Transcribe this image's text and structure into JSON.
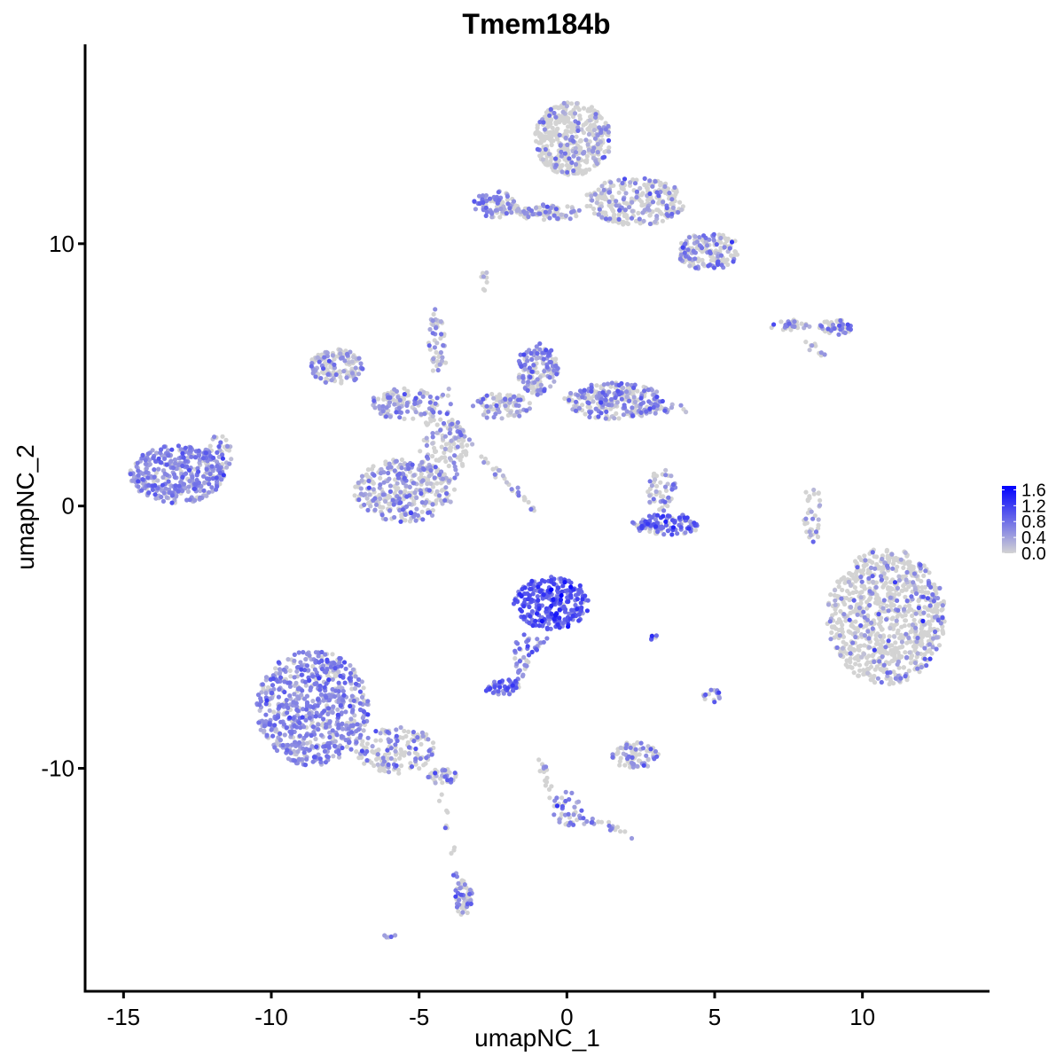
{
  "chart_data": {
    "type": "scatter",
    "title": "Tmem184b",
    "xlabel": "umapNC_1",
    "ylabel": "umapNC_2",
    "xlim": [
      -16.3,
      14.3
    ],
    "ylim": [
      -18.5,
      17.6
    ],
    "x_ticks": [
      -15,
      -10,
      -5,
      0,
      5,
      10
    ],
    "y_ticks": [
      -10,
      0,
      10
    ],
    "x_tick_labels": [
      "-15",
      "-10",
      "-5",
      "0",
      "5",
      "10"
    ],
    "y_tick_labels": [
      "-10",
      "0",
      "10"
    ],
    "grid": false,
    "legend": {
      "placement": "right",
      "type": "colorbar",
      "ticks": [
        1.6,
        1.2,
        0.8,
        0.4,
        0.0
      ],
      "tick_labels": [
        "1.6",
        "1.2",
        "0.8",
        "0.4",
        "0.0"
      ],
      "min_value": 0.0,
      "max_value": 1.7
    },
    "colors": {
      "low": "#d3d3d3",
      "high": "#0000ff"
    },
    "clusters": [
      {
        "cx": -13.2,
        "cy": 1.2,
        "rx": 1.6,
        "ry": 1.1,
        "n": 380,
        "expr_frac": 0.85,
        "expr_mean": 0.55
      },
      {
        "cx": -11.8,
        "cy": 2.0,
        "rx": 0.5,
        "ry": 0.7,
        "n": 40,
        "expr_frac": 0.6,
        "expr_mean": 0.45
      },
      {
        "cx": 0.2,
        "cy": 14.0,
        "rx": 1.3,
        "ry": 1.4,
        "n": 420,
        "expr_frac": 0.2,
        "expr_mean": 0.5
      },
      {
        "cx": 2.3,
        "cy": 11.6,
        "rx": 1.7,
        "ry": 0.9,
        "n": 260,
        "expr_frac": 0.3,
        "expr_mean": 0.5
      },
      {
        "cx": 4.8,
        "cy": 9.7,
        "rx": 1.1,
        "ry": 0.7,
        "n": 170,
        "expr_frac": 0.4,
        "expr_mean": 0.55
      },
      {
        "cx": -2.4,
        "cy": 11.5,
        "rx": 0.8,
        "ry": 0.5,
        "n": 80,
        "expr_frac": 0.55,
        "expr_mean": 0.55
      },
      {
        "cx": -0.6,
        "cy": 11.2,
        "rx": 1.2,
        "ry": 0.3,
        "n": 60,
        "expr_frac": 0.4,
        "expr_mean": 0.5
      },
      {
        "cx": 9.1,
        "cy": 6.8,
        "rx": 0.6,
        "ry": 0.3,
        "n": 50,
        "expr_frac": 0.5,
        "expr_mean": 0.75
      },
      {
        "cx": 7.5,
        "cy": 6.9,
        "rx": 0.8,
        "ry": 0.2,
        "n": 35,
        "expr_frac": 0.4,
        "expr_mean": 0.6
      },
      {
        "cx": -7.8,
        "cy": 5.3,
        "rx": 0.9,
        "ry": 0.7,
        "n": 130,
        "expr_frac": 0.6,
        "expr_mean": 0.55
      },
      {
        "cx": -5.5,
        "cy": 3.9,
        "rx": 1.2,
        "ry": 0.6,
        "n": 120,
        "expr_frac": 0.45,
        "expr_mean": 0.5
      },
      {
        "cx": -4.2,
        "cy": 2.2,
        "rx": 0.8,
        "ry": 1.4,
        "n": 110,
        "expr_frac": 0.35,
        "expr_mean": 0.5
      },
      {
        "cx": -5.5,
        "cy": 0.6,
        "rx": 1.7,
        "ry": 1.2,
        "n": 330,
        "expr_frac": 0.5,
        "expr_mean": 0.5
      },
      {
        "cx": -1.0,
        "cy": 5.2,
        "rx": 0.7,
        "ry": 1.0,
        "n": 150,
        "expr_frac": 0.65,
        "expr_mean": 0.6
      },
      {
        "cx": 1.6,
        "cy": 4.0,
        "rx": 1.7,
        "ry": 0.7,
        "n": 260,
        "expr_frac": 0.55,
        "expr_mean": 0.55
      },
      {
        "cx": -2.2,
        "cy": 3.8,
        "rx": 1.0,
        "ry": 0.5,
        "n": 90,
        "expr_frac": 0.45,
        "expr_mean": 0.5
      },
      {
        "cx": -4.4,
        "cy": 6.2,
        "rx": 0.3,
        "ry": 1.2,
        "n": 35,
        "expr_frac": 0.5,
        "expr_mean": 0.5
      },
      {
        "cx": 3.4,
        "cy": -0.7,
        "rx": 1.2,
        "ry": 0.4,
        "n": 110,
        "expr_frac": 0.7,
        "expr_mean": 0.8
      },
      {
        "cx": 3.2,
        "cy": 0.6,
        "rx": 0.5,
        "ry": 0.8,
        "n": 50,
        "expr_frac": 0.5,
        "expr_mean": 0.5
      },
      {
        "cx": -0.5,
        "cy": -3.7,
        "rx": 1.3,
        "ry": 1.0,
        "n": 260,
        "expr_frac": 0.95,
        "expr_mean": 0.95
      },
      {
        "cx": -2.2,
        "cy": -6.9,
        "rx": 0.6,
        "ry": 0.3,
        "n": 45,
        "expr_frac": 0.85,
        "expr_mean": 0.85
      },
      {
        "cx": -1.5,
        "cy": -5.6,
        "rx": 0.3,
        "ry": 0.8,
        "n": 25,
        "expr_frac": 0.8,
        "expr_mean": 0.7
      },
      {
        "cx": 10.8,
        "cy": -4.2,
        "rx": 2.0,
        "ry": 2.6,
        "n": 850,
        "expr_frac": 0.22,
        "expr_mean": 0.55
      },
      {
        "cx": -8.6,
        "cy": -7.7,
        "rx": 1.9,
        "ry": 2.2,
        "n": 680,
        "expr_frac": 0.82,
        "expr_mean": 0.55
      },
      {
        "cx": -5.8,
        "cy": -9.3,
        "rx": 1.4,
        "ry": 0.9,
        "n": 150,
        "expr_frac": 0.5,
        "expr_mean": 0.55
      },
      {
        "cx": -4.2,
        "cy": -10.3,
        "rx": 0.5,
        "ry": 0.3,
        "n": 40,
        "expr_frac": 0.6,
        "expr_mean": 0.6
      },
      {
        "cx": 2.3,
        "cy": -9.5,
        "rx": 0.8,
        "ry": 0.5,
        "n": 80,
        "expr_frac": 0.45,
        "expr_mean": 0.5
      },
      {
        "cx": 0.0,
        "cy": -11.6,
        "rx": 0.5,
        "ry": 0.7,
        "n": 35,
        "expr_frac": 0.6,
        "expr_mean": 0.6
      },
      {
        "cx": -3.5,
        "cy": -14.9,
        "rx": 0.3,
        "ry": 0.7,
        "n": 55,
        "expr_frac": 0.55,
        "expr_mean": 0.55
      },
      {
        "cx": 8.3,
        "cy": -0.3,
        "rx": 0.3,
        "ry": 1.2,
        "n": 35,
        "expr_frac": 0.4,
        "expr_mean": 0.5
      },
      {
        "cx": 4.9,
        "cy": -7.2,
        "rx": 0.3,
        "ry": 0.3,
        "n": 15,
        "expr_frac": 0.6,
        "expr_mean": 0.6
      },
      {
        "cx": 2.9,
        "cy": -5.0,
        "rx": 0.2,
        "ry": 0.1,
        "n": 6,
        "expr_frac": 0.6,
        "expr_mean": 0.9
      },
      {
        "cx": -2.8,
        "cy": 8.6,
        "rx": 0.2,
        "ry": 0.4,
        "n": 8,
        "expr_frac": 0.5,
        "expr_mean": 0.5
      },
      {
        "cx": -6.0,
        "cy": -16.4,
        "rx": 0.2,
        "ry": 0.1,
        "n": 5,
        "expr_frac": 0.8,
        "expr_mean": 0.5
      }
    ],
    "lines": [
      {
        "from": [
          -3.8,
          3.0
        ],
        "to": [
          -1.1,
          -0.2
        ],
        "n": 40,
        "expr_frac": 0.35,
        "expr_mean": 0.5
      },
      {
        "from": [
          -4.5,
          7.6
        ],
        "to": [
          -3.9,
          2.5
        ],
        "n": 30,
        "expr_frac": 0.5,
        "expr_mean": 0.5
      },
      {
        "from": [
          -0.8,
          -5.0
        ],
        "to": [
          -1.8,
          -6.8
        ],
        "n": 25,
        "expr_frac": 0.7,
        "expr_mean": 0.6
      },
      {
        "from": [
          -0.9,
          -9.6
        ],
        "to": [
          -0.3,
          -11.5
        ],
        "n": 20,
        "expr_frac": 0.5,
        "expr_mean": 0.55
      },
      {
        "from": [
          0.2,
          -11.8
        ],
        "to": [
          2.4,
          -12.6
        ],
        "n": 22,
        "expr_frac": 0.45,
        "expr_mean": 0.6
      },
      {
        "from": [
          -4.2,
          -11.0
        ],
        "to": [
          -3.5,
          -15.3
        ],
        "n": 20,
        "expr_frac": 0.3,
        "expr_mean": 0.5
      },
      {
        "from": [
          -2.0,
          11.3
        ],
        "to": [
          0.2,
          11.1
        ],
        "n": 25,
        "expr_frac": 0.4,
        "expr_mean": 0.55
      },
      {
        "from": [
          2.3,
          3.6
        ],
        "to": [
          4.2,
          3.7
        ],
        "n": 30,
        "expr_frac": 0.45,
        "expr_mean": 0.5
      },
      {
        "from": [
          8.1,
          6.3
        ],
        "to": [
          8.7,
          5.7
        ],
        "n": 10,
        "expr_frac": 0.2,
        "expr_mean": 0.5
      }
    ]
  }
}
